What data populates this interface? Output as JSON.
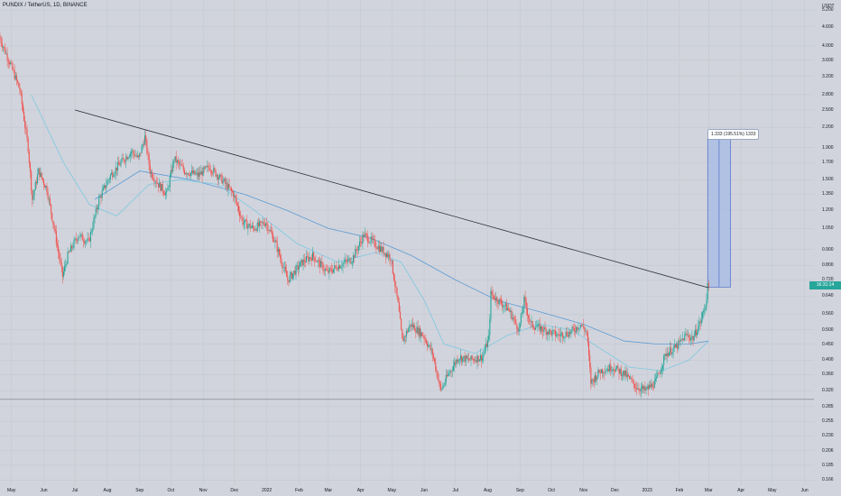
{
  "header": {
    "symbol_title": "PUNDIX / TetherUS, 1D, BINANCE"
  },
  "price_axis": {
    "unit": "USDT",
    "ticks": [
      "5.200",
      "4.600",
      "4.000",
      "3.600",
      "3.200",
      "2.800",
      "2.500",
      "2.200",
      "1.900",
      "1.700",
      "1.500",
      "1.350",
      "1.200",
      "1.050",
      "0.900",
      "0.800",
      "0.720",
      "0.640",
      "0.560",
      "0.500",
      "0.450",
      "0.400",
      "0.360",
      "0.320",
      "0.285",
      "0.255",
      "0.230",
      "0.206",
      "0.185",
      "0.166"
    ]
  },
  "time_axis": {
    "ticks": [
      "May",
      "Jun",
      "Jul",
      "Aug",
      "Sep",
      "Oct",
      "Nov",
      "Dec",
      "2022",
      "Feb",
      "Mar",
      "Apr",
      "May",
      "Jun",
      "Jul",
      "Aug",
      "Sep",
      "Oct",
      "Nov",
      "Dec",
      "2023",
      "Feb",
      "Mar",
      "Apr",
      "May",
      "Jun"
    ]
  },
  "last_price": {
    "value": "0.6830",
    "countdown": "16:31:14",
    "label": "16:31:14",
    "color": "#26a69a"
  },
  "measure_box": {
    "label": "1.333 (195.51%) 1333"
  },
  "colors": {
    "up": "#26a69a",
    "down": "#ef5350",
    "ma_slow": "#5b9bd5",
    "ma_fast": "#7ec8e3",
    "trendline": "#2a2e39",
    "measure_fill": "#a3b9e6",
    "measure_border": "#3f63c8"
  },
  "chart_data": {
    "type": "candlestick",
    "title": "PUNDIX / TetherUS, 1D, BINANCE",
    "xlabel": "",
    "ylabel": "USDT",
    "scale": "log",
    "ylim": [
      0.16,
      5.6
    ],
    "x_range": [
      "2021-04-20",
      "2023-06-10"
    ],
    "series": [
      {
        "name": "price",
        "points": [
          [
            "2021-04-20",
            4.3
          ],
          [
            "2021-05-01",
            3.5
          ],
          [
            "2021-05-10",
            2.9
          ],
          [
            "2021-05-18",
            1.9
          ],
          [
            "2021-05-22",
            1.3
          ],
          [
            "2021-05-28",
            1.6
          ],
          [
            "2021-06-05",
            1.4
          ],
          [
            "2021-06-12",
            1.05
          ],
          [
            "2021-06-20",
            0.74
          ],
          [
            "2021-06-25",
            0.86
          ],
          [
            "2021-07-05",
            1.0
          ],
          [
            "2021-07-15",
            0.95
          ],
          [
            "2021-07-25",
            1.3
          ],
          [
            "2021-08-05",
            1.55
          ],
          [
            "2021-08-15",
            1.7
          ],
          [
            "2021-08-25",
            1.85
          ],
          [
            "2021-09-01",
            1.75
          ],
          [
            "2021-09-07",
            2.05
          ],
          [
            "2021-09-12",
            1.6
          ],
          [
            "2021-09-20",
            1.45
          ],
          [
            "2021-09-28",
            1.35
          ],
          [
            "2021-10-05",
            1.75
          ],
          [
            "2021-10-15",
            1.6
          ],
          [
            "2021-10-28",
            1.55
          ],
          [
            "2021-11-08",
            1.65
          ],
          [
            "2021-11-20",
            1.5
          ],
          [
            "2021-12-01",
            1.35
          ],
          [
            "2021-12-10",
            1.1
          ],
          [
            "2021-12-20",
            1.05
          ],
          [
            "2022-01-01",
            1.1
          ],
          [
            "2022-01-10",
            0.95
          ],
          [
            "2022-01-22",
            0.72
          ],
          [
            "2022-02-05",
            0.82
          ],
          [
            "2022-02-15",
            0.86
          ],
          [
            "2022-03-01",
            0.76
          ],
          [
            "2022-03-12",
            0.8
          ],
          [
            "2022-03-25",
            0.84
          ],
          [
            "2022-04-05",
            1.0
          ],
          [
            "2022-04-12",
            0.96
          ],
          [
            "2022-04-22",
            0.9
          ],
          [
            "2022-05-01",
            0.85
          ],
          [
            "2022-05-08",
            0.6
          ],
          [
            "2022-05-12",
            0.46
          ],
          [
            "2022-05-20",
            0.52
          ],
          [
            "2022-06-01",
            0.48
          ],
          [
            "2022-06-10",
            0.42
          ],
          [
            "2022-06-18",
            0.32
          ],
          [
            "2022-06-25",
            0.36
          ],
          [
            "2022-07-05",
            0.41
          ],
          [
            "2022-07-15",
            0.4
          ],
          [
            "2022-07-28",
            0.41
          ],
          [
            "2022-08-03",
            0.47
          ],
          [
            "2022-08-05",
            0.65
          ],
          [
            "2022-08-12",
            0.62
          ],
          [
            "2022-08-22",
            0.58
          ],
          [
            "2022-09-01",
            0.5
          ],
          [
            "2022-09-06",
            0.62
          ],
          [
            "2022-09-12",
            0.52
          ],
          [
            "2022-09-25",
            0.5
          ],
          [
            "2022-10-08",
            0.48
          ],
          [
            "2022-10-20",
            0.49
          ],
          [
            "2022-10-30",
            0.52
          ],
          [
            "2022-11-05",
            0.49
          ],
          [
            "2022-11-09",
            0.34
          ],
          [
            "2022-11-18",
            0.37
          ],
          [
            "2022-11-30",
            0.38
          ],
          [
            "2022-12-12",
            0.36
          ],
          [
            "2022-12-22",
            0.33
          ],
          [
            "2022-12-31",
            0.32
          ],
          [
            "2023-01-10",
            0.34
          ],
          [
            "2023-01-20",
            0.42
          ],
          [
            "2023-01-30",
            0.44
          ],
          [
            "2023-02-08",
            0.48
          ],
          [
            "2023-02-15",
            0.47
          ],
          [
            "2023-02-22",
            0.53
          ],
          [
            "2023-02-27",
            0.6
          ],
          [
            "2023-03-01",
            0.683
          ]
        ]
      },
      {
        "name": "ma_slow",
        "points": [
          [
            "2021-07-20",
            1.3
          ],
          [
            "2021-09-01",
            1.6
          ],
          [
            "2021-10-20",
            1.5
          ],
          [
            "2021-12-10",
            1.35
          ],
          [
            "2022-01-20",
            1.2
          ],
          [
            "2022-03-01",
            1.05
          ],
          [
            "2022-04-10",
            0.98
          ],
          [
            "2022-05-20",
            0.86
          ],
          [
            "2022-07-01",
            0.72
          ],
          [
            "2022-08-10",
            0.62
          ],
          [
            "2022-09-20",
            0.57
          ],
          [
            "2022-11-01",
            0.52
          ],
          [
            "2022-12-10",
            0.46
          ],
          [
            "2023-01-10",
            0.45
          ],
          [
            "2023-02-10",
            0.45
          ],
          [
            "2023-03-01",
            0.46
          ]
        ]
      },
      {
        "name": "ma_fast",
        "points": [
          [
            "2021-05-20",
            2.8
          ],
          [
            "2021-06-20",
            1.7
          ],
          [
            "2021-07-15",
            1.25
          ],
          [
            "2021-08-10",
            1.15
          ],
          [
            "2021-09-10",
            1.45
          ],
          [
            "2021-10-10",
            1.5
          ],
          [
            "2021-11-15",
            1.45
          ],
          [
            "2021-12-20",
            1.2
          ],
          [
            "2022-01-30",
            0.94
          ],
          [
            "2022-03-10",
            0.82
          ],
          [
            "2022-04-15",
            0.88
          ],
          [
            "2022-05-10",
            0.82
          ],
          [
            "2022-06-01",
            0.62
          ],
          [
            "2022-06-20",
            0.45
          ],
          [
            "2022-07-20",
            0.42
          ],
          [
            "2022-08-20",
            0.48
          ],
          [
            "2022-09-20",
            0.52
          ],
          [
            "2022-10-20",
            0.5
          ],
          [
            "2022-11-15",
            0.44
          ],
          [
            "2022-12-15",
            0.38
          ],
          [
            "2023-01-15",
            0.37
          ],
          [
            "2023-02-10",
            0.4
          ],
          [
            "2023-03-01",
            0.46
          ]
        ]
      },
      {
        "name": "trendline",
        "points": [
          [
            "2021-07-01",
            2.5
          ],
          [
            "2023-03-01",
            0.68
          ]
        ]
      }
    ],
    "annotations": {
      "horizontal_line": 0.3,
      "measure_range": {
        "from_date": "2023-02-28",
        "to_date": "2023-03-22",
        "from_price": 0.683,
        "to_price": 2.016,
        "label": "1.333 (195.51%) 1333"
      }
    }
  }
}
